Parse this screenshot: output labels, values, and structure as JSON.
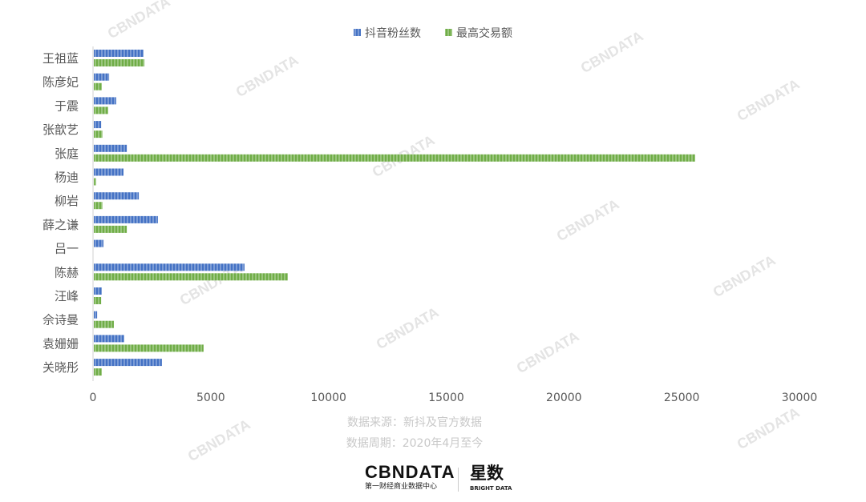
{
  "chart_data": {
    "type": "bar",
    "orientation": "horizontal",
    "categories": [
      "王祖蓝",
      "陈彦妃",
      "于震",
      "张歆艺",
      "张庭",
      "杨迪",
      "柳岩",
      "薛之谦",
      "吕一",
      "陈赫",
      "汪峰",
      "佘诗曼",
      "袁姗姗",
      "关晓彤"
    ],
    "series": [
      {
        "name": "抖音粉丝数",
        "color": "#4472c4",
        "values": [
          2110,
          650,
          950,
          310,
          1400,
          1260,
          1910,
          2720,
          410,
          6400,
          340,
          140,
          1290,
          2890
        ]
      },
      {
        "name": "最高交易额",
        "color": "#70ad47",
        "values": [
          2150,
          340,
          610,
          370,
          25540,
          100,
          370,
          1400,
          0,
          8240,
          310,
          850,
          4660,
          340
        ]
      }
    ],
    "xlim": [
      0,
      30000
    ],
    "xticks": [
      "0",
      "5000",
      "10000",
      "15000",
      "20000",
      "25000",
      "30000"
    ],
    "legend": "top",
    "grid": false
  },
  "footer": {
    "source": "数据来源：新抖及官方数据",
    "period": "数据周期：2020年4月至今",
    "logo_main": "CBNDATA",
    "logo_sub": "第一财经商业数据中心",
    "logo_xs": "星数",
    "logo_xs_sub": "BRIGHT DATA",
    "watermark": "CBNDATA"
  }
}
